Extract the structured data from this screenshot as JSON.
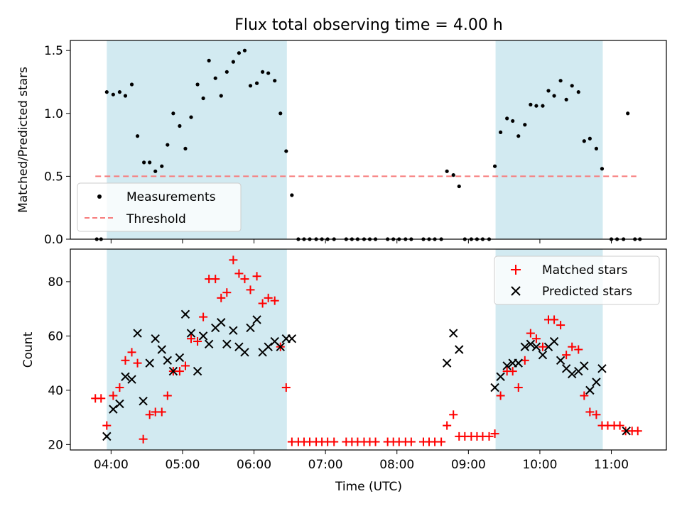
{
  "title": "Flux total observing time = 4.00 h",
  "chart_data": [
    {
      "type": "scatter",
      "ylabel": "Matched/Predicted stars",
      "ylim": [
        0,
        1.58
      ],
      "xlim": [
        3.43,
        11.77
      ],
      "yticks": [
        0.0,
        0.5,
        1.0,
        1.5
      ],
      "ytick_labels": [
        "0.0",
        "0.5",
        "1.0",
        "1.5"
      ],
      "legend": [
        "Measurements",
        "Threshold"
      ],
      "legend_loc": "lower-left",
      "threshold": {
        "value": 0.5,
        "x_start": 3.78,
        "x_end": 11.35,
        "color": "#f77b7b"
      },
      "shaded_spans": [
        [
          3.94,
          6.46
        ],
        [
          9.38,
          10.88
        ]
      ],
      "series": [
        {
          "name": "Measurements",
          "color": "#000000",
          "points": [
            [
              3.8,
              0
            ],
            [
              3.86,
              0
            ],
            [
              3.94,
              1.17
            ],
            [
              4.03,
              1.15
            ],
            [
              4.12,
              1.17
            ],
            [
              4.2,
              1.14
            ],
            [
              4.29,
              1.23
            ],
            [
              4.37,
              0.82
            ],
            [
              4.46,
              0.61
            ],
            [
              4.54,
              0.61
            ],
            [
              4.62,
              0.54
            ],
            [
              4.71,
              0.58
            ],
            [
              4.79,
              0.75
            ],
            [
              4.87,
              1.0
            ],
            [
              4.96,
              0.9
            ],
            [
              5.04,
              0.72
            ],
            [
              5.12,
              0.97
            ],
            [
              5.21,
              1.23
            ],
            [
              5.29,
              1.12
            ],
            [
              5.37,
              1.42
            ],
            [
              5.46,
              1.28
            ],
            [
              5.54,
              1.14
            ],
            [
              5.62,
              1.33
            ],
            [
              5.71,
              1.41
            ],
            [
              5.79,
              1.48
            ],
            [
              5.87,
              1.5
            ],
            [
              5.95,
              1.22
            ],
            [
              6.04,
              1.24
            ],
            [
              6.12,
              1.33
            ],
            [
              6.2,
              1.32
            ],
            [
              6.29,
              1.26
            ],
            [
              6.37,
              1.0
            ],
            [
              6.45,
              0.7
            ],
            [
              6.53,
              0.35
            ],
            [
              6.62,
              0
            ],
            [
              6.7,
              0
            ],
            [
              6.78,
              0
            ],
            [
              6.87,
              0
            ],
            [
              6.95,
              0
            ],
            [
              7.03,
              0
            ],
            [
              7.12,
              0
            ],
            [
              7.29,
              0
            ],
            [
              7.37,
              0
            ],
            [
              7.45,
              0
            ],
            [
              7.54,
              0
            ],
            [
              7.62,
              0
            ],
            [
              7.7,
              0
            ],
            [
              7.87,
              0
            ],
            [
              7.95,
              0
            ],
            [
              8.03,
              0
            ],
            [
              8.12,
              0
            ],
            [
              8.2,
              0
            ],
            [
              8.37,
              0
            ],
            [
              8.45,
              0
            ],
            [
              8.53,
              0
            ],
            [
              8.62,
              0
            ],
            [
              8.7,
              0.54
            ],
            [
              8.79,
              0.51
            ],
            [
              8.87,
              0.42
            ],
            [
              8.95,
              0
            ],
            [
              9.04,
              0
            ],
            [
              9.12,
              0
            ],
            [
              9.2,
              0
            ],
            [
              9.29,
              0
            ],
            [
              9.37,
              0.58
            ],
            [
              9.45,
              0.85
            ],
            [
              9.54,
              0.96
            ],
            [
              9.62,
              0.94
            ],
            [
              9.7,
              0.82
            ],
            [
              9.79,
              0.91
            ],
            [
              9.87,
              1.07
            ],
            [
              9.95,
              1.06
            ],
            [
              10.04,
              1.06
            ],
            [
              10.12,
              1.18
            ],
            [
              10.2,
              1.14
            ],
            [
              10.29,
              1.26
            ],
            [
              10.37,
              1.11
            ],
            [
              10.45,
              1.22
            ],
            [
              10.54,
              1.17
            ],
            [
              10.62,
              0.78
            ],
            [
              10.7,
              0.8
            ],
            [
              10.79,
              0.72
            ],
            [
              10.87,
              0.56
            ],
            [
              11.0,
              0
            ],
            [
              11.08,
              0
            ],
            [
              11.17,
              0
            ],
            [
              11.23,
              1.0
            ],
            [
              11.33,
              0
            ],
            [
              11.4,
              0
            ]
          ]
        }
      ]
    },
    {
      "type": "scatter",
      "xlabel": "Time (UTC)",
      "ylabel": "Count",
      "ylim": [
        18,
        92
      ],
      "xlim": [
        3.43,
        11.77
      ],
      "yticks": [
        20,
        40,
        60,
        80
      ],
      "ytick_labels": [
        "20",
        "40",
        "60",
        "80"
      ],
      "xticks": [
        4,
        5,
        6,
        7,
        8,
        9,
        10,
        11
      ],
      "xtick_labels": [
        "04:00",
        "05:00",
        "06:00",
        "07:00",
        "08:00",
        "09:00",
        "10:00",
        "11:00"
      ],
      "legend": [
        "Matched stars",
        "Predicted stars"
      ],
      "legend_loc": "top-right",
      "shaded_spans": [
        [
          3.94,
          6.46
        ],
        [
          9.38,
          10.88
        ]
      ],
      "series": [
        {
          "name": "Matched stars",
          "marker": "plus",
          "color": "#ff0000",
          "points": [
            [
              3.78,
              37
            ],
            [
              3.86,
              37
            ],
            [
              3.94,
              27
            ],
            [
              4.03,
              38
            ],
            [
              4.12,
              41
            ],
            [
              4.2,
              51
            ],
            [
              4.29,
              54
            ],
            [
              4.37,
              50
            ],
            [
              4.45,
              22
            ],
            [
              4.54,
              31
            ],
            [
              4.62,
              32
            ],
            [
              4.71,
              32
            ],
            [
              4.79,
              38
            ],
            [
              4.87,
              47
            ],
            [
              4.96,
              47
            ],
            [
              5.04,
              49
            ],
            [
              5.12,
              59
            ],
            [
              5.21,
              58
            ],
            [
              5.29,
              67
            ],
            [
              5.37,
              81
            ],
            [
              5.46,
              81
            ],
            [
              5.54,
              74
            ],
            [
              5.62,
              76
            ],
            [
              5.71,
              88
            ],
            [
              5.79,
              83
            ],
            [
              5.87,
              81
            ],
            [
              5.95,
              77
            ],
            [
              6.04,
              82
            ],
            [
              6.12,
              72
            ],
            [
              6.2,
              74
            ],
            [
              6.29,
              73
            ],
            [
              6.37,
              56
            ],
            [
              6.45,
              41
            ],
            [
              6.53,
              21
            ],
            [
              6.62,
              21
            ],
            [
              6.7,
              21
            ],
            [
              6.78,
              21
            ],
            [
              6.87,
              21
            ],
            [
              6.95,
              21
            ],
            [
              7.03,
              21
            ],
            [
              7.12,
              21
            ],
            [
              7.29,
              21
            ],
            [
              7.37,
              21
            ],
            [
              7.45,
              21
            ],
            [
              7.54,
              21
            ],
            [
              7.62,
              21
            ],
            [
              7.7,
              21
            ],
            [
              7.87,
              21
            ],
            [
              7.95,
              21
            ],
            [
              8.03,
              21
            ],
            [
              8.12,
              21
            ],
            [
              8.2,
              21
            ],
            [
              8.37,
              21
            ],
            [
              8.45,
              21
            ],
            [
              8.53,
              21
            ],
            [
              8.62,
              21
            ],
            [
              8.7,
              27
            ],
            [
              8.79,
              31
            ],
            [
              8.87,
              23
            ],
            [
              8.95,
              23
            ],
            [
              9.04,
              23
            ],
            [
              9.12,
              23
            ],
            [
              9.2,
              23
            ],
            [
              9.29,
              23
            ],
            [
              9.37,
              24
            ],
            [
              9.45,
              38
            ],
            [
              9.54,
              47
            ],
            [
              9.62,
              47
            ],
            [
              9.7,
              41
            ],
            [
              9.79,
              51
            ],
            [
              9.87,
              61
            ],
            [
              9.95,
              59
            ],
            [
              10.04,
              56
            ],
            [
              10.12,
              66
            ],
            [
              10.2,
              66
            ],
            [
              10.29,
              64
            ],
            [
              10.37,
              53
            ],
            [
              10.45,
              56
            ],
            [
              10.54,
              55
            ],
            [
              10.62,
              38
            ],
            [
              10.7,
              32
            ],
            [
              10.79,
              31
            ],
            [
              10.87,
              27
            ],
            [
              10.95,
              27
            ],
            [
              11.04,
              27
            ],
            [
              11.12,
              27
            ],
            [
              11.2,
              25
            ],
            [
              11.29,
              25
            ],
            [
              11.37,
              25
            ]
          ]
        },
        {
          "name": "Predicted stars",
          "marker": "x",
          "color": "#000000",
          "points": [
            [
              3.94,
              23
            ],
            [
              4.03,
              33
            ],
            [
              4.12,
              35
            ],
            [
              4.2,
              45
            ],
            [
              4.29,
              44
            ],
            [
              4.37,
              61
            ],
            [
              4.45,
              36
            ],
            [
              4.54,
              50
            ],
            [
              4.62,
              59
            ],
            [
              4.71,
              55
            ],
            [
              4.79,
              51
            ],
            [
              4.87,
              47
            ],
            [
              4.96,
              52
            ],
            [
              5.04,
              68
            ],
            [
              5.12,
              61
            ],
            [
              5.21,
              47
            ],
            [
              5.29,
              60
            ],
            [
              5.37,
              57
            ],
            [
              5.46,
              63
            ],
            [
              5.54,
              65
            ],
            [
              5.62,
              57
            ],
            [
              5.71,
              62
            ],
            [
              5.79,
              56
            ],
            [
              5.87,
              54
            ],
            [
              5.95,
              63
            ],
            [
              6.04,
              66
            ],
            [
              6.12,
              54
            ],
            [
              6.2,
              56
            ],
            [
              6.29,
              58
            ],
            [
              6.37,
              56
            ],
            [
              6.45,
              59
            ],
            [
              6.53,
              59
            ],
            [
              8.7,
              50
            ],
            [
              8.79,
              61
            ],
            [
              8.87,
              55
            ],
            [
              9.37,
              41
            ],
            [
              9.45,
              45
            ],
            [
              9.54,
              49
            ],
            [
              9.62,
              50
            ],
            [
              9.7,
              50
            ],
            [
              9.79,
              56
            ],
            [
              9.87,
              57
            ],
            [
              9.95,
              56
            ],
            [
              10.04,
              53
            ],
            [
              10.12,
              56
            ],
            [
              10.2,
              58
            ],
            [
              10.29,
              51
            ],
            [
              10.37,
              48
            ],
            [
              10.45,
              46
            ],
            [
              10.54,
              47
            ],
            [
              10.62,
              49
            ],
            [
              10.7,
              40
            ],
            [
              10.79,
              43
            ],
            [
              10.87,
              48
            ],
            [
              11.21,
              25
            ]
          ]
        }
      ]
    }
  ]
}
